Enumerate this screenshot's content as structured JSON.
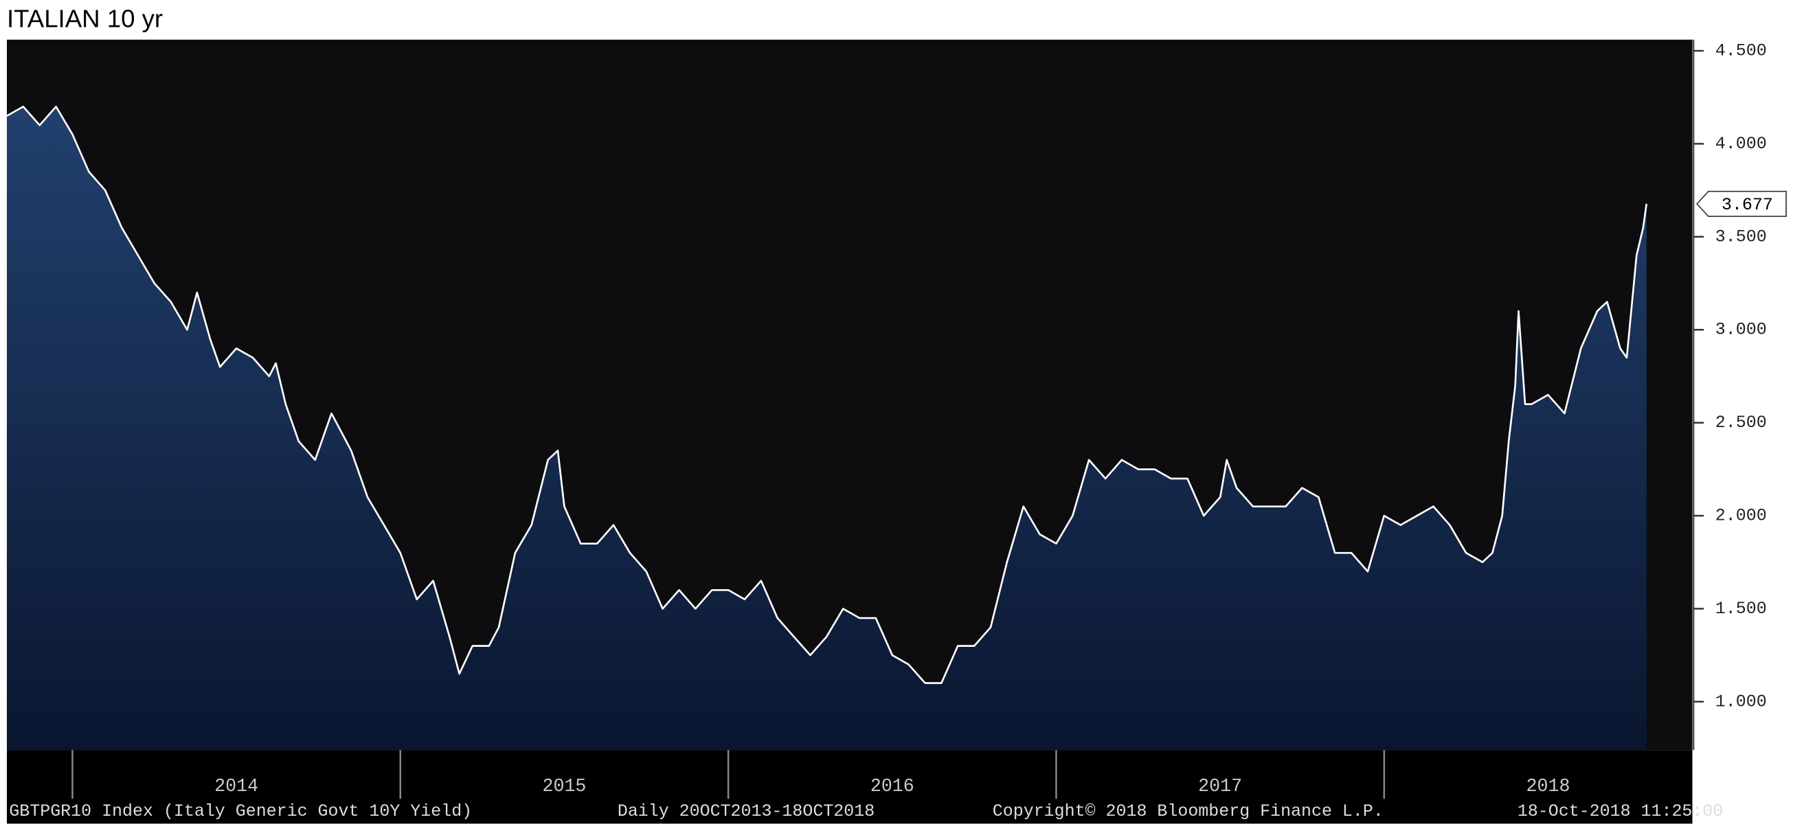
{
  "chart_data": {
    "type": "area",
    "title": "ITALIAN 10 yr",
    "series": [
      {
        "name": "GBTPGR10 Index",
        "color": "#ffffff",
        "x": [
          2013.8,
          2013.85,
          2013.9,
          2013.95,
          2014.0,
          2014.05,
          2014.1,
          2014.15,
          2014.2,
          2014.25,
          2014.3,
          2014.35,
          2014.38,
          2014.42,
          2014.45,
          2014.5,
          2014.55,
          2014.6,
          2014.62,
          2014.65,
          2014.69,
          2014.74,
          2014.79,
          2014.85,
          2014.9,
          2014.95,
          2015.0,
          2015.05,
          2015.1,
          2015.15,
          2015.18,
          2015.22,
          2015.27,
          2015.3,
          2015.35,
          2015.4,
          2015.45,
          2015.48,
          2015.5,
          2015.55,
          2015.6,
          2015.65,
          2015.7,
          2015.75,
          2015.8,
          2015.85,
          2015.9,
          2015.95,
          2016.0,
          2016.05,
          2016.1,
          2016.15,
          2016.2,
          2016.25,
          2016.3,
          2016.35,
          2016.4,
          2016.45,
          2016.5,
          2016.55,
          2016.6,
          2016.65,
          2016.7,
          2016.75,
          2016.8,
          2016.85,
          2016.9,
          2016.95,
          2017.0,
          2017.05,
          2017.1,
          2017.15,
          2017.2,
          2017.25,
          2017.3,
          2017.35,
          2017.4,
          2017.45,
          2017.5,
          2017.52,
          2017.55,
          2017.6,
          2017.65,
          2017.7,
          2017.75,
          2017.8,
          2017.85,
          2017.9,
          2017.95,
          2018.0,
          2018.05,
          2018.1,
          2018.15,
          2018.2,
          2018.25,
          2018.3,
          2018.33,
          2018.36,
          2018.38,
          2018.4,
          2018.41,
          2018.43,
          2018.45,
          2018.5,
          2018.55,
          2018.6,
          2018.65,
          2018.68,
          2018.72,
          2018.74,
          2018.77,
          2018.79,
          2018.8
        ],
        "values": [
          4.15,
          4.2,
          4.1,
          4.2,
          4.05,
          3.85,
          3.75,
          3.55,
          3.4,
          3.25,
          3.15,
          3.0,
          3.2,
          2.95,
          2.8,
          2.9,
          2.85,
          2.75,
          2.82,
          2.6,
          2.4,
          2.3,
          2.55,
          2.35,
          2.1,
          1.95,
          1.8,
          1.55,
          1.65,
          1.35,
          1.15,
          1.3,
          1.3,
          1.4,
          1.8,
          1.95,
          2.3,
          2.35,
          2.05,
          1.85,
          1.85,
          1.95,
          1.8,
          1.7,
          1.5,
          1.6,
          1.5,
          1.6,
          1.6,
          1.55,
          1.65,
          1.45,
          1.35,
          1.25,
          1.35,
          1.5,
          1.45,
          1.45,
          1.25,
          1.2,
          1.1,
          1.1,
          1.3,
          1.3,
          1.4,
          1.75,
          2.05,
          1.9,
          1.85,
          2.0,
          2.3,
          2.2,
          2.3,
          2.25,
          2.25,
          2.2,
          2.2,
          2.0,
          2.1,
          2.3,
          2.15,
          2.05,
          2.05,
          2.05,
          2.15,
          2.1,
          1.8,
          1.8,
          1.7,
          2.0,
          1.95,
          2.0,
          2.05,
          1.95,
          1.8,
          1.75,
          1.8,
          2.0,
          2.4,
          2.7,
          3.1,
          2.6,
          2.6,
          2.65,
          2.55,
          2.9,
          3.1,
          3.15,
          2.9,
          2.85,
          3.4,
          3.55,
          3.677
        ]
      }
    ],
    "area_colors": [
      "#22406e",
      "#0a1630"
    ],
    "background": "#0d0d10",
    "xlim": [
      2013.8,
      2018.94
    ],
    "xticks": [
      2014,
      2015,
      2016,
      2017,
      2018
    ],
    "ylim": [
      0.74,
      4.56
    ],
    "yticks": [
      {
        "value": 1,
        "label": "1.000"
      },
      {
        "value": 1.5,
        "label": "1.500"
      },
      {
        "value": 2,
        "label": "2.000"
      },
      {
        "value": 2.5,
        "label": "2.500"
      },
      {
        "value": 3,
        "label": "3.000"
      },
      {
        "value": 3.5,
        "label": "3.500"
      },
      {
        "value": 4,
        "label": "4.000"
      },
      {
        "value": 4.5,
        "label": "4.500"
      }
    ],
    "y_axis_side": "right",
    "footer": [
      "GBTPGR10 Index (Italy Generic Govt 10Y Yield)",
      "Daily 20OCT2013-18OCT2018",
      "Copyright© 2018 Bloomberg Finance L.P.",
      "18-Oct-2018 11:25:00"
    ]
  }
}
